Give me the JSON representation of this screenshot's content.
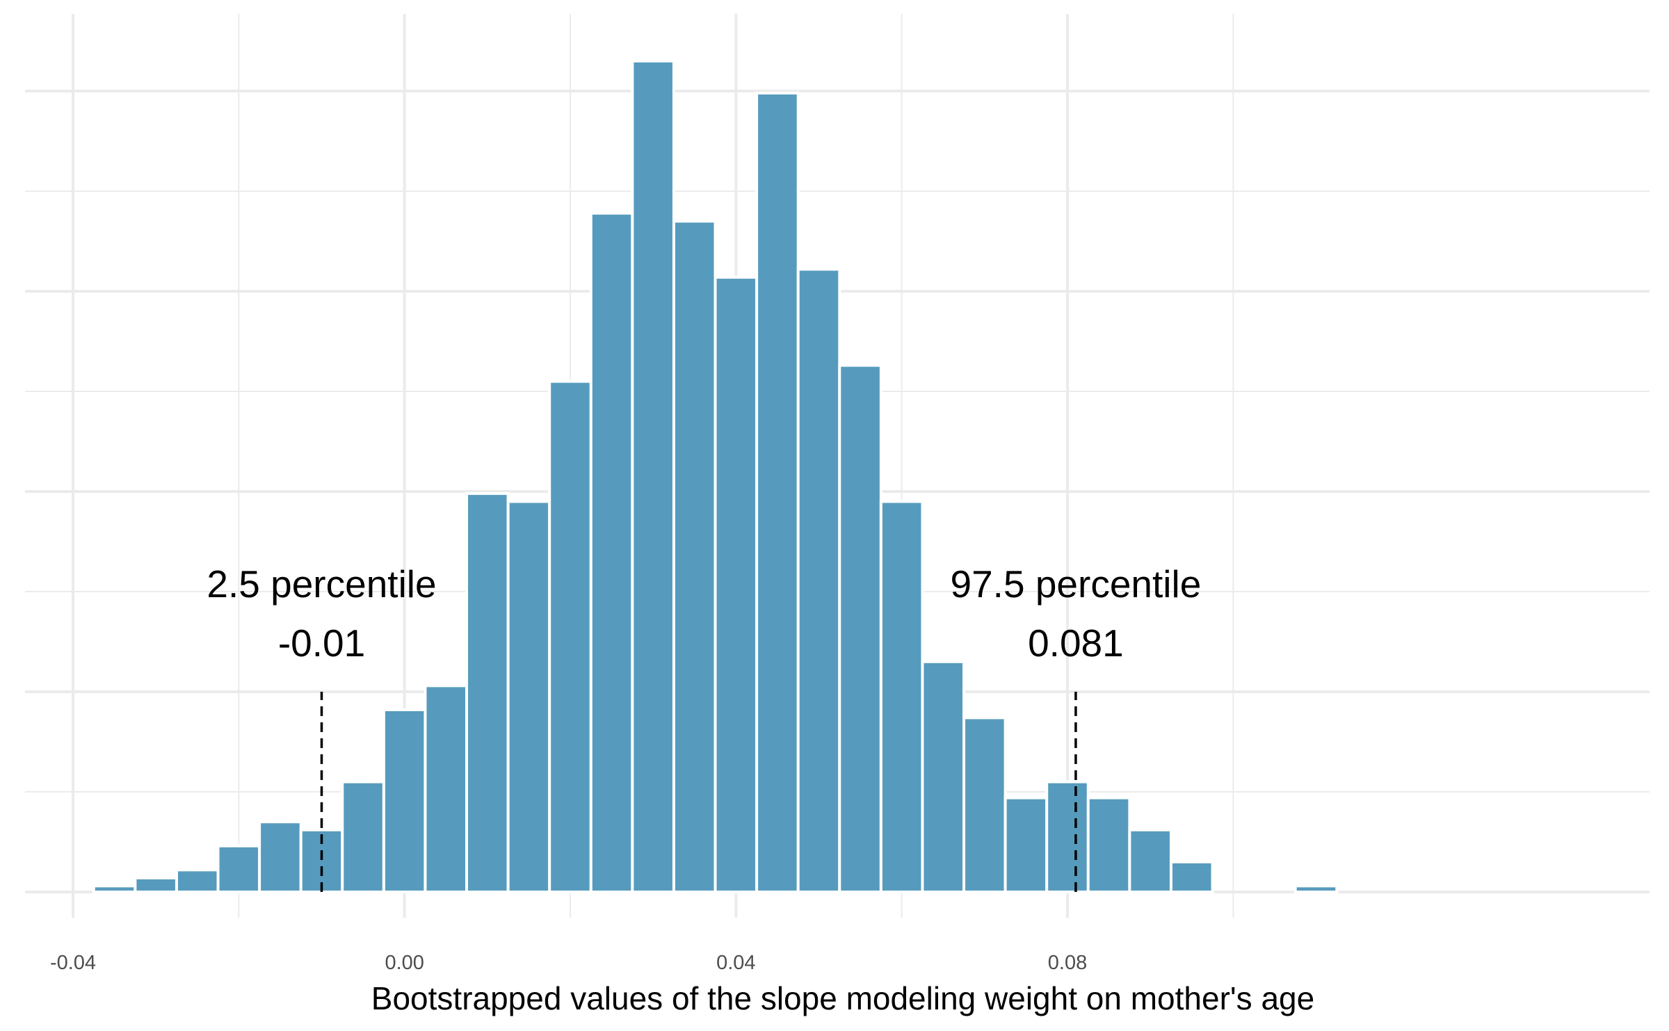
{
  "chart_data": {
    "type": "bar",
    "subtype": "histogram",
    "title": "",
    "xlabel": "Bootstrapped values of the slope modeling weight on mother's age",
    "ylabel": "",
    "xlim": [
      -0.0416,
      0.1254
    ],
    "ylim": [
      0,
      0.85
    ],
    "x_ticks": [
      -0.04,
      0.0,
      0.04,
      0.08
    ],
    "x_tick_labels": [
      "-0.04",
      "0.00",
      "0.04",
      "0.08"
    ],
    "x_minor_ticks": [
      -0.02,
      0.02,
      0.06,
      0.1
    ],
    "y_grid_major": [
      0,
      0.2,
      0.4,
      0.6,
      0.8
    ],
    "y_grid_minor": [
      0.1,
      0.3,
      0.5,
      0.7
    ],
    "y_ticks_labeled": false,
    "grid": true,
    "bar_color": "#569BBD",
    "bin_width": 0.005,
    "bins": [
      {
        "start": -0.0375,
        "end": -0.0325,
        "value": 0.006
      },
      {
        "start": -0.0325,
        "end": -0.0275,
        "value": 0.014
      },
      {
        "start": -0.0275,
        "end": -0.0225,
        "value": 0.022
      },
      {
        "start": -0.0225,
        "end": -0.0175,
        "value": 0.046
      },
      {
        "start": -0.0175,
        "end": -0.0125,
        "value": 0.07
      },
      {
        "start": -0.0125,
        "end": -0.0075,
        "value": 0.062
      },
      {
        "start": -0.0075,
        "end": -0.0025,
        "value": 0.11
      },
      {
        "start": -0.0025,
        "end": 0.0025,
        "value": 0.182
      },
      {
        "start": 0.0025,
        "end": 0.0075,
        "value": 0.206
      },
      {
        "start": 0.0075,
        "end": 0.0125,
        "value": 0.398
      },
      {
        "start": 0.0125,
        "end": 0.0175,
        "value": 0.39
      },
      {
        "start": 0.0175,
        "end": 0.0225,
        "value": 0.51
      },
      {
        "start": 0.0225,
        "end": 0.0275,
        "value": 0.678
      },
      {
        "start": 0.0275,
        "end": 0.0325,
        "value": 0.83
      },
      {
        "start": 0.0325,
        "end": 0.0375,
        "value": 0.67
      },
      {
        "start": 0.0375,
        "end": 0.0425,
        "value": 0.614
      },
      {
        "start": 0.0425,
        "end": 0.0475,
        "value": 0.798
      },
      {
        "start": 0.0475,
        "end": 0.0525,
        "value": 0.622
      },
      {
        "start": 0.0525,
        "end": 0.0575,
        "value": 0.526
      },
      {
        "start": 0.0575,
        "end": 0.0625,
        "value": 0.39
      },
      {
        "start": 0.0625,
        "end": 0.0675,
        "value": 0.23
      },
      {
        "start": 0.0675,
        "end": 0.0725,
        "value": 0.174
      },
      {
        "start": 0.0725,
        "end": 0.0775,
        "value": 0.094
      },
      {
        "start": 0.0775,
        "end": 0.0825,
        "value": 0.11
      },
      {
        "start": 0.0825,
        "end": 0.0875,
        "value": 0.094
      },
      {
        "start": 0.0875,
        "end": 0.0925,
        "value": 0.062
      },
      {
        "start": 0.0925,
        "end": 0.0975,
        "value": 0.03
      },
      {
        "start": 0.0975,
        "end": 0.1025,
        "value": 0.0
      },
      {
        "start": 0.1025,
        "end": 0.1075,
        "value": 0.0
      },
      {
        "start": 0.1075,
        "end": 0.1125,
        "value": 0.006
      }
    ],
    "reference_lines": [
      {
        "x": -0.01,
        "style": "dashed",
        "height": 0.2,
        "label_line1": "2.5 percentile",
        "label_line2": "-0.01"
      },
      {
        "x": 0.081,
        "style": "dashed",
        "height": 0.2,
        "label_line1": "97.5 percentile",
        "label_line2": "0.081"
      }
    ]
  }
}
